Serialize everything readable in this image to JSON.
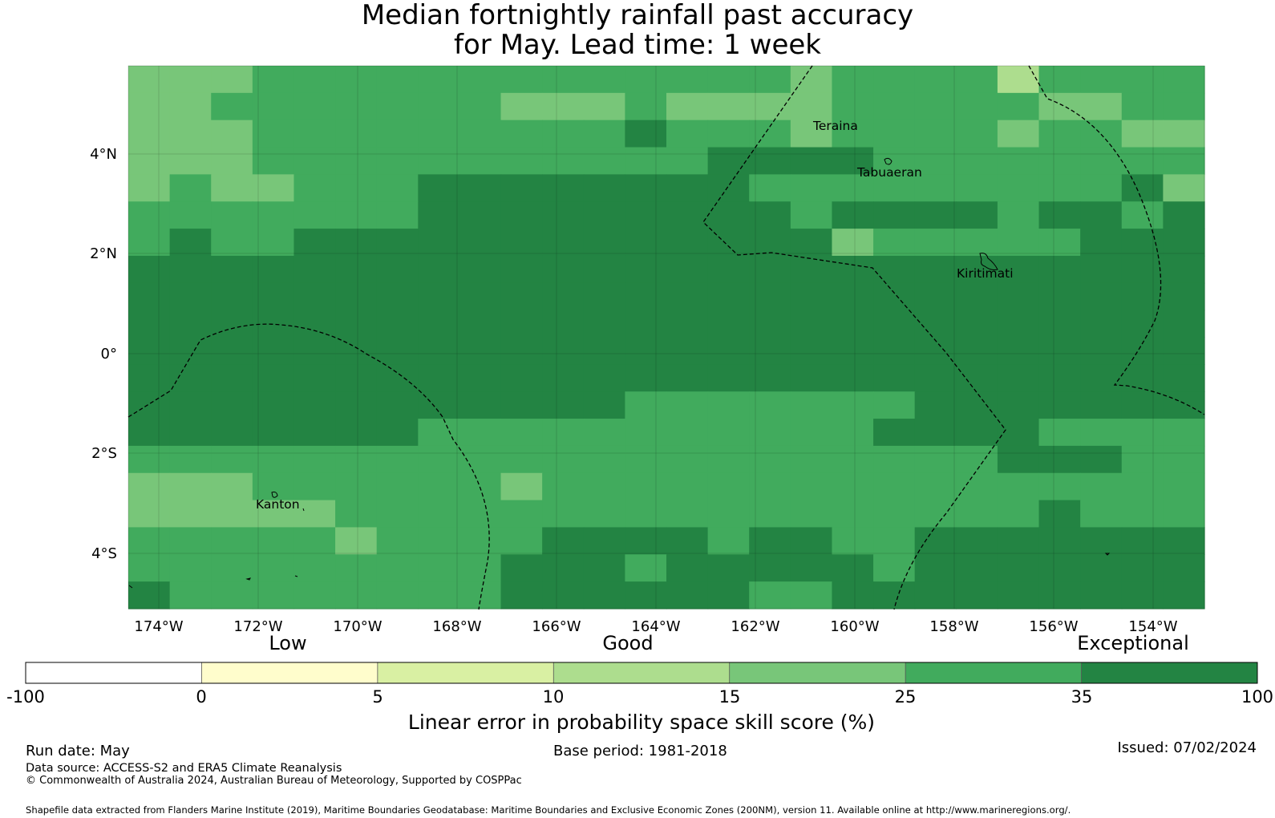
{
  "title": {
    "line1": "Median fortnightly rainfall past accuracy",
    "line2": "for May. Lead time: 1 week"
  },
  "map": {
    "x_ticks": [
      "174°W",
      "172°W",
      "170°W",
      "168°W",
      "166°W",
      "164°W",
      "162°W",
      "160°W",
      "158°W",
      "156°W",
      "154°W"
    ],
    "y_ticks": [
      "4°N",
      "2°N",
      "0°",
      "2°S",
      "4°S"
    ],
    "places": [
      "Teraina",
      "Tabuaeran",
      "Kiritimati",
      "Kanton"
    ]
  },
  "colorbar": {
    "category_labels": [
      "Low",
      "Good",
      "Exceptional"
    ],
    "tick_labels": [
      "-100",
      "0",
      "5",
      "10",
      "15",
      "25",
      "35",
      "100"
    ],
    "colors": [
      "#ffffff",
      "#fffdcc",
      "#d9f0a3",
      "#addd8e",
      "#78c679",
      "#41ab5d",
      "#238443"
    ],
    "title": "Linear error in probability space skill score (%)"
  },
  "footer": {
    "run_date": "Run date: May",
    "base_period": "Base period: 1981-2018",
    "issued": "Issued: 07/02/2024",
    "data_source": "Data source: ACCESS-S2 and ERA5 Climate Reanalysis",
    "copyright": "© Commonwealth of Australia 2024, Australian Bureau of Meteorology, Supported by COSPPac",
    "shapefile": "Shapefile data extracted from Flanders Marine Institute (2019), Maritime Boundaries Geodatabase: Maritime Boundaries and Exclusive Economic Zones (200NM), version 11. Available online at http://www.marineregions.org/."
  }
}
